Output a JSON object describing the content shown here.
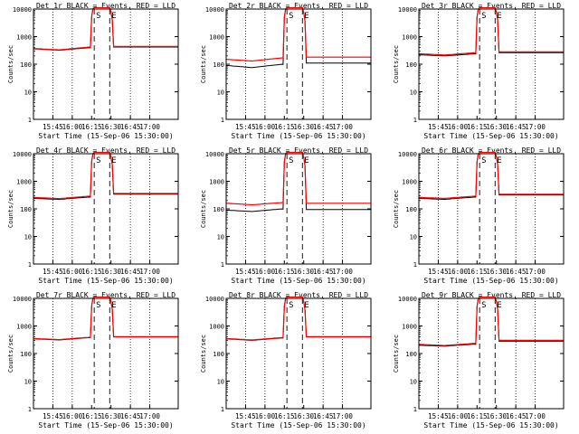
{
  "figure": {
    "x_ticks": [
      "15:45",
      "16:00",
      "16:15",
      "16:30",
      "16:45",
      "17:00"
    ],
    "y_ticks": [
      "1",
      "10",
      "100",
      "1000",
      "10000"
    ],
    "ylabel": "Counts/sec",
    "xlabel": "Start Time (15-Sep-06 15:30:00)",
    "marker_S": "S",
    "marker_E": "E",
    "colors": {
      "events": "#000000",
      "lld": "#ff0000",
      "frame": "#000000"
    }
  },
  "chart_data": [
    {
      "type": "line",
      "title": "Det 1r BLACK = Events, RED = LLD",
      "xlabel": "Start Time (15-Sep-06 15:30:00)",
      "ylabel": "Counts/sec",
      "scale": "log",
      "ylim": [
        1,
        10000
      ],
      "x": [
        "15:45",
        "16:00",
        "16:15",
        "16:30",
        "16:45",
        "17:00"
      ],
      "series": [
        {
          "name": "Events",
          "values": [
            360,
            320,
            400,
            15000,
            420,
            420
          ]
        },
        {
          "name": "LLD",
          "values": [
            370,
            330,
            420,
            15000,
            440,
            440
          ]
        }
      ]
    },
    {
      "type": "line",
      "title": "Det 2r BLACK = Events, RED = LLD",
      "xlabel": "Start Time (15-Sep-06 15:30:00)",
      "ylabel": "Counts/sec",
      "scale": "log",
      "ylim": [
        1,
        10000
      ],
      "x": [
        "15:45",
        "16:00",
        "16:15",
        "16:30",
        "16:45",
        "17:00"
      ],
      "series": [
        {
          "name": "Events",
          "values": [
            90,
            75,
            100,
            15000,
            110,
            110
          ]
        },
        {
          "name": "LLD",
          "values": [
            150,
            130,
            170,
            15000,
            180,
            180
          ]
        }
      ]
    },
    {
      "type": "line",
      "title": "Det 3r BLACK = Events, RED = LLD",
      "xlabel": "Start Time (15-Sep-06 15:30:00)",
      "ylabel": "Counts/sec",
      "scale": "log",
      "ylim": [
        1,
        10000
      ],
      "x": [
        "15:45",
        "16:00",
        "16:15",
        "16:30",
        "16:45",
        "17:00"
      ],
      "series": [
        {
          "name": "Events",
          "values": [
            220,
            200,
            240,
            15000,
            260,
            260
          ]
        },
        {
          "name": "LLD",
          "values": [
            240,
            215,
            260,
            15000,
            280,
            280
          ]
        }
      ]
    },
    {
      "type": "line",
      "title": "Det 4r BLACK = Events, RED = LLD",
      "xlabel": "Start Time (15-Sep-06 15:30:00)",
      "ylabel": "Counts/sec",
      "scale": "log",
      "ylim": [
        1,
        10000
      ],
      "x": [
        "15:45",
        "16:00",
        "16:15",
        "16:30",
        "16:45",
        "17:00"
      ],
      "series": [
        {
          "name": "Events",
          "values": [
            240,
            220,
            270,
            15000,
            340,
            340
          ]
        },
        {
          "name": "LLD",
          "values": [
            260,
            235,
            290,
            15000,
            360,
            360
          ]
        }
      ]
    },
    {
      "type": "line",
      "title": "Det 5r BLACK = Events, RED = LLD",
      "xlabel": "Start Time (15-Sep-06 15:30:00)",
      "ylabel": "Counts/sec",
      "scale": "log",
      "ylim": [
        1,
        10000
      ],
      "x": [
        "15:45",
        "16:00",
        "16:15",
        "16:30",
        "16:45",
        "17:00"
      ],
      "series": [
        {
          "name": "Events",
          "values": [
            90,
            80,
            100,
            15000,
            95,
            95
          ]
        },
        {
          "name": "LLD",
          "values": [
            160,
            140,
            170,
            15000,
            160,
            160
          ]
        }
      ]
    },
    {
      "type": "line",
      "title": "Det 6r BLACK = Events, RED = LLD",
      "xlabel": "Start Time (15-Sep-06 15:30:00)",
      "ylabel": "Counts/sec",
      "scale": "log",
      "ylim": [
        1,
        10000
      ],
      "x": [
        "15:45",
        "16:00",
        "16:15",
        "16:30",
        "16:45",
        "17:00"
      ],
      "series": [
        {
          "name": "Events",
          "values": [
            240,
            220,
            270,
            15000,
            320,
            320
          ]
        },
        {
          "name": "LLD",
          "values": [
            260,
            240,
            290,
            15000,
            340,
            340
          ]
        }
      ]
    },
    {
      "type": "line",
      "title": "Det 7r BLACK = Events, RED = LLD",
      "xlabel": "Start Time (15-Sep-06 15:30:00)",
      "ylabel": "Counts/sec",
      "scale": "log",
      "ylim": [
        1,
        10000
      ],
      "x": [
        "15:45",
        "16:00",
        "16:15",
        "16:30",
        "16:45",
        "17:00"
      ],
      "series": [
        {
          "name": "Events",
          "values": [
            340,
            310,
            380,
            15000,
            400,
            400
          ]
        },
        {
          "name": "LLD",
          "values": [
            350,
            320,
            390,
            15000,
            410,
            410
          ]
        }
      ]
    },
    {
      "type": "line",
      "title": "Det 8r BLACK = Events, RED = LLD",
      "xlabel": "Start Time (15-Sep-06 15:30:00)",
      "ylabel": "Counts/sec",
      "scale": "log",
      "ylim": [
        1,
        10000
      ],
      "x": [
        "15:45",
        "16:00",
        "16:15",
        "16:30",
        "16:45",
        "17:00"
      ],
      "series": [
        {
          "name": "Events",
          "values": [
            340,
            300,
            370,
            15000,
            400,
            400
          ]
        },
        {
          "name": "LLD",
          "values": [
            350,
            310,
            380,
            15000,
            410,
            410
          ]
        }
      ]
    },
    {
      "type": "line",
      "title": "Det 9r BLACK = Events, RED = LLD",
      "xlabel": "Start Time (15-Sep-06 15:30:00)",
      "ylabel": "Counts/sec",
      "scale": "log",
      "ylim": [
        1,
        10000
      ],
      "x": [
        "15:45",
        "16:00",
        "16:15",
        "16:30",
        "16:45",
        "17:00"
      ],
      "series": [
        {
          "name": "Events",
          "values": [
            200,
            185,
            220,
            15000,
            280,
            280
          ]
        },
        {
          "name": "LLD",
          "values": [
            215,
            195,
            235,
            15000,
            300,
            300
          ]
        }
      ]
    }
  ]
}
